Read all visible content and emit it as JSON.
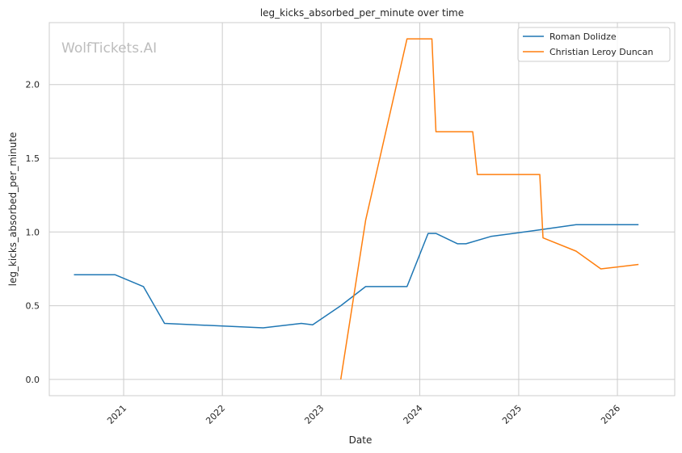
{
  "chart_data": {
    "type": "line",
    "title": "leg_kicks_absorbed_per_minute over time",
    "xlabel": "Date",
    "ylabel": "leg_kicks_absorbed_per_minute",
    "watermark": "WolfTickets.AI",
    "x_ticks": [
      "2021",
      "2022",
      "2023",
      "2024",
      "2025",
      "2026"
    ],
    "y_ticks": [
      "0.0",
      "0.5",
      "1.0",
      "1.5",
      "2.0"
    ],
    "xlim": [
      "2020-04-01",
      "2026-08-01"
    ],
    "ylim": [
      -0.11,
      2.42
    ],
    "grid": true,
    "legend_position": "top-right",
    "colors": {
      "Roman Dolidze": "#1f77b4",
      "Christian Leroy Duncan": "#ff7f0e"
    },
    "series": [
      {
        "name": "Roman Dolidze",
        "x": [
          "2020-07-01",
          "2020-12-01",
          "2021-03-15",
          "2021-06-01",
          "2022-06-01",
          "2022-10-20",
          "2022-12-01",
          "2023-03-15",
          "2023-06-15",
          "2023-11-15",
          "2024-02-01",
          "2024-03-01",
          "2024-05-20",
          "2024-06-20",
          "2024-09-20",
          "2025-03-01",
          "2025-08-01",
          "2025-12-01",
          "2026-03-20"
        ],
        "values": [
          0.71,
          0.71,
          0.63,
          0.38,
          0.35,
          0.38,
          0.37,
          0.5,
          0.63,
          0.63,
          0.99,
          0.99,
          0.92,
          0.92,
          0.97,
          1.01,
          1.05,
          1.05,
          1.05
        ]
      },
      {
        "name": "Christian Leroy Duncan",
        "x": [
          "2023-03-15",
          "2023-06-15",
          "2023-11-15",
          "2024-02-15",
          "2024-03-01",
          "2024-07-15",
          "2024-08-01",
          "2025-03-20",
          "2025-04-01",
          "2025-08-01",
          "2025-11-01",
          "2026-03-20"
        ],
        "values": [
          0.0,
          1.08,
          2.31,
          2.31,
          1.68,
          1.68,
          1.39,
          1.39,
          0.96,
          0.87,
          0.75,
          0.78
        ]
      }
    ]
  }
}
